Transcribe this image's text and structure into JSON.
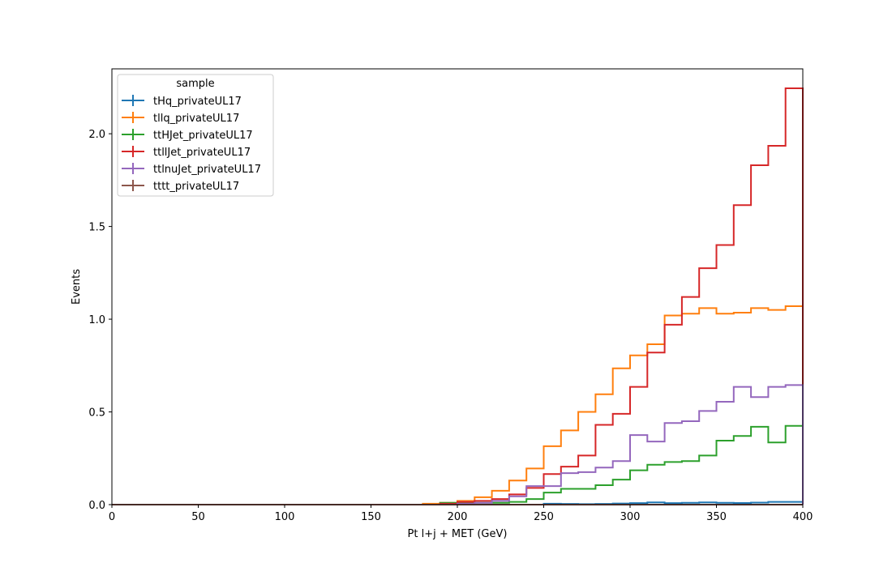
{
  "chart_data": {
    "type": "line",
    "drawstyle": "steps-post",
    "xlabel": "Pt l+j + MET (GeV)",
    "ylabel": "Events",
    "xlim": [
      0,
      400
    ],
    "ylim": [
      0,
      2.35
    ],
    "xticks": [
      0,
      50,
      100,
      150,
      200,
      250,
      300,
      350,
      400
    ],
    "yticks": [
      0.0,
      0.5,
      1.0,
      1.5,
      2.0
    ],
    "xtick_labels": [
      "0",
      "50",
      "100",
      "150",
      "200",
      "250",
      "300",
      "350",
      "400"
    ],
    "ytick_labels": [
      "0.0",
      "0.5",
      "1.0",
      "1.5",
      "2.0"
    ],
    "grid": false,
    "legend": {
      "title": "sample",
      "position": "top-left"
    },
    "bin_edges": [
      0,
      10,
      20,
      30,
      40,
      50,
      60,
      70,
      80,
      90,
      100,
      110,
      120,
      130,
      140,
      150,
      160,
      170,
      180,
      190,
      200,
      210,
      220,
      230,
      240,
      250,
      260,
      270,
      280,
      290,
      300,
      310,
      320,
      330,
      340,
      350,
      360,
      370,
      380,
      390,
      400
    ],
    "series": [
      {
        "name": "tHq_privateUL17",
        "color": "#1f77b4",
        "values": [
          0,
          0,
          0,
          0,
          0,
          0,
          0,
          0,
          0,
          0,
          0,
          0,
          0,
          0,
          0,
          0,
          0,
          0,
          0,
          0,
          0,
          0,
          0,
          0,
          0,
          0.005,
          0.004,
          0.003,
          0.004,
          0.006,
          0.008,
          0.012,
          0.008,
          0.01,
          0.012,
          0.01,
          0.009,
          0.011,
          0.015,
          0.015
        ]
      },
      {
        "name": "tllq_privateUL17",
        "color": "#ff7f0e",
        "values": [
          0,
          0,
          0,
          0,
          0,
          0,
          0,
          0,
          0,
          0,
          0,
          0,
          0,
          0,
          0,
          0,
          0,
          0,
          0.005,
          0.01,
          0.02,
          0.04,
          0.075,
          0.13,
          0.195,
          0.315,
          0.4,
          0.5,
          0.595,
          0.735,
          0.805,
          0.865,
          1.02,
          1.03,
          1.06,
          1.03,
          1.035,
          1.06,
          1.05,
          1.07
        ]
      },
      {
        "name": "ttHJet_privateUL17",
        "color": "#2ca02c",
        "values": [
          0,
          0,
          0,
          0,
          0,
          0,
          0,
          0,
          0,
          0,
          0,
          0,
          0,
          0,
          0,
          0,
          0,
          0,
          0,
          0.01,
          0.01,
          0.01,
          0.01,
          0.015,
          0.03,
          0.065,
          0.085,
          0.085,
          0.105,
          0.135,
          0.185,
          0.215,
          0.23,
          0.235,
          0.265,
          0.345,
          0.37,
          0.42,
          0.335,
          0.425
        ]
      },
      {
        "name": "ttllJet_privateUL17",
        "color": "#d62728",
        "values": [
          0,
          0,
          0,
          0,
          0,
          0,
          0,
          0,
          0,
          0,
          0,
          0,
          0,
          0,
          0,
          0,
          0,
          0,
          0,
          0.005,
          0.015,
          0.02,
          0.03,
          0.055,
          0.09,
          0.165,
          0.205,
          0.265,
          0.43,
          0.49,
          0.635,
          0.82,
          0.97,
          1.12,
          1.275,
          1.4,
          1.615,
          1.83,
          1.935,
          2.245
        ]
      },
      {
        "name": "ttlnuJet_privateUL17",
        "color": "#9467bd",
        "values": [
          0,
          0,
          0,
          0,
          0,
          0,
          0,
          0,
          0,
          0,
          0,
          0,
          0,
          0,
          0,
          0,
          0,
          0,
          0,
          0,
          0.005,
          0.01,
          0.02,
          0.045,
          0.1,
          0.1,
          0.17,
          0.175,
          0.2,
          0.235,
          0.375,
          0.34,
          0.44,
          0.45,
          0.505,
          0.555,
          0.635,
          0.58,
          0.635,
          0.645
        ]
      },
      {
        "name": "tttt_privateUL17",
        "color": "#8c564b",
        "values": [
          0,
          0,
          0,
          0,
          0,
          0,
          0,
          0,
          0,
          0,
          0,
          0,
          0,
          0,
          0,
          0,
          0,
          0,
          0,
          0,
          0,
          0,
          0,
          0,
          0,
          0,
          0,
          0,
          0,
          0,
          0,
          0,
          0,
          0,
          0,
          0,
          0,
          0,
          0,
          0
        ]
      }
    ]
  }
}
